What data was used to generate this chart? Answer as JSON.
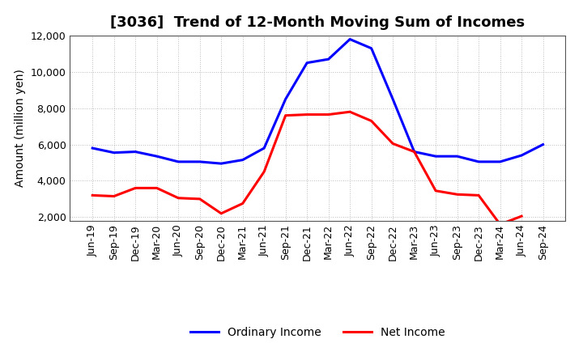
{
  "title": "[3036]  Trend of 12-Month Moving Sum of Incomes",
  "ylabel": "Amount (million yen)",
  "x_labels": [
    "Jun-19",
    "Sep-19",
    "Dec-19",
    "Mar-20",
    "Jun-20",
    "Sep-20",
    "Dec-20",
    "Mar-21",
    "Jun-21",
    "Sep-21",
    "Dec-21",
    "Mar-22",
    "Jun-22",
    "Sep-22",
    "Dec-22",
    "Mar-23",
    "Jun-23",
    "Sep-23",
    "Dec-23",
    "Mar-24",
    "Jun-24",
    "Sep-24"
  ],
  "ordinary_income": [
    5800,
    5550,
    5600,
    5350,
    5050,
    5050,
    4950,
    5150,
    5800,
    8500,
    10500,
    10700,
    11800,
    11300,
    8500,
    5600,
    5350,
    5350,
    5050,
    5050,
    5400,
    6000
  ],
  "net_income": [
    3200,
    3150,
    3600,
    3600,
    3050,
    3000,
    2200,
    2750,
    4500,
    7600,
    7650,
    7650,
    7800,
    7300,
    6050,
    5600,
    3450,
    3250,
    3200,
    1600,
    2050,
    null
  ],
  "ordinary_color": "#0000FF",
  "net_color": "#FF0000",
  "bg_color": "#FFFFFF",
  "plot_bg_color": "#FFFFFF",
  "grid_color": "#BBBBBB",
  "ylim": [
    1800,
    12000
  ],
  "yticks": [
    2000,
    4000,
    6000,
    8000,
    10000,
    12000
  ],
  "legend_labels": [
    "Ordinary Income",
    "Net Income"
  ],
  "line_width": 2.2,
  "title_fontsize": 13,
  "ylabel_fontsize": 10,
  "tick_fontsize": 9,
  "legend_fontsize": 10
}
